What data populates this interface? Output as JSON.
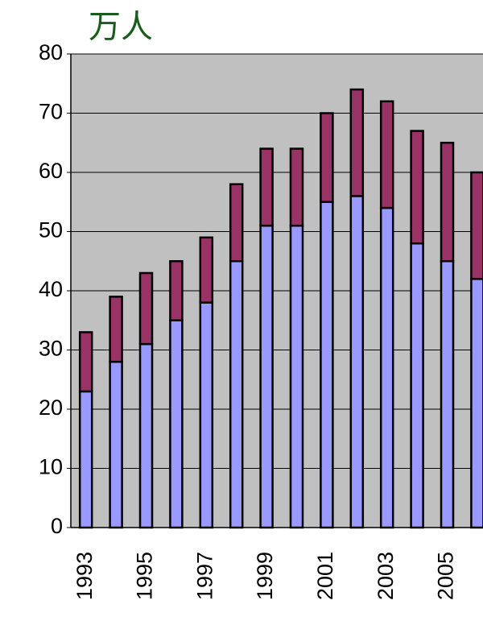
{
  "chart_data": {
    "type": "stacked_bar",
    "title": "万人",
    "categories": [
      "1993",
      null,
      "1995",
      null,
      "1997",
      null,
      "1999",
      null,
      "2001",
      null,
      "2003",
      null,
      "2005",
      null
    ],
    "series": [
      {
        "color": "#9999ff",
        "values": [
          23,
          28,
          31,
          35,
          38,
          45,
          51,
          51,
          55,
          56,
          54,
          48,
          45,
          42
        ]
      },
      {
        "color": "#993366",
        "values": [
          10,
          11,
          12,
          10,
          11,
          13,
          13,
          13,
          15,
          18,
          18,
          19,
          20,
          18
        ]
      }
    ],
    "ylim": [
      0,
      80
    ],
    "yticks": [
      0,
      10,
      20,
      30,
      40,
      50,
      60,
      70,
      80
    ],
    "grid": true
  }
}
